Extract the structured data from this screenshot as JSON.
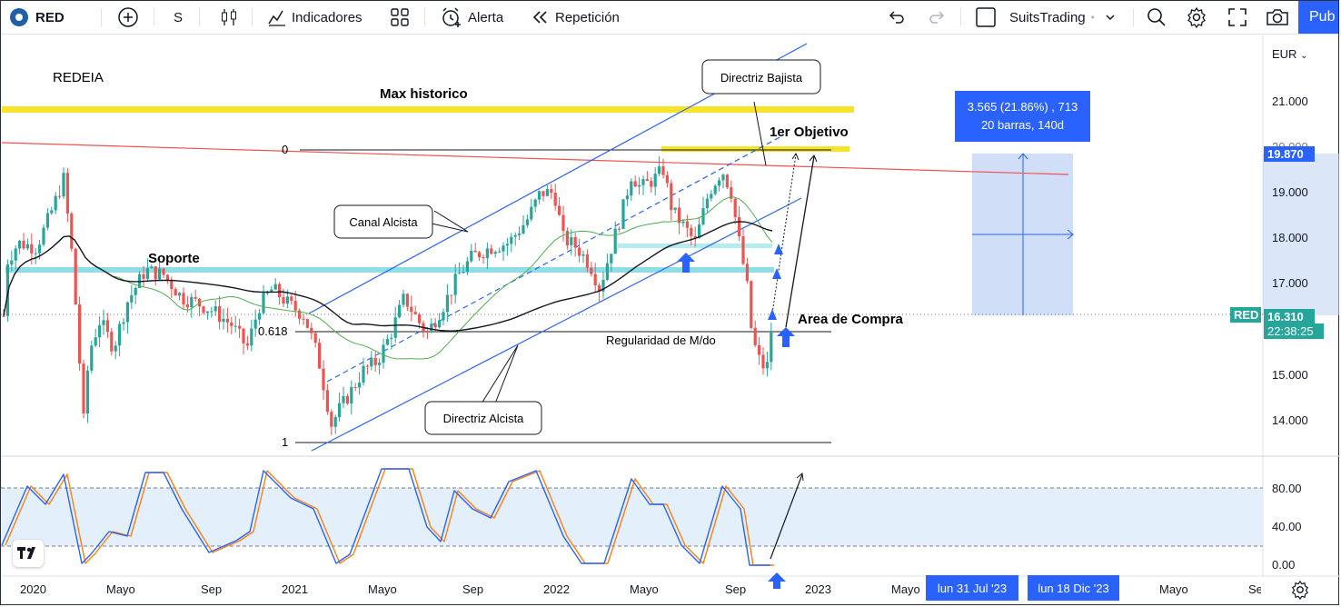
{
  "toolbar": {
    "symbol": "RED",
    "interval": "S",
    "indicators": "Indicadores",
    "alert": "Alerta",
    "replay": "Repetición",
    "layout_name": "SuitsTrading",
    "publish": "Pub"
  },
  "chart": {
    "ticker_title": "REDEIA",
    "currency": "EUR",
    "price_ticks": [
      "21.000",
      "20.000",
      "19.000",
      "18.000",
      "17.000",
      "16.000",
      "15.000",
      "14.000"
    ],
    "osc_ticks": [
      "80.00",
      "40.00",
      "0.00"
    ],
    "time_ticks": [
      "2020",
      "Mayo",
      "Sep",
      "2021",
      "Mayo",
      "Sep",
      "2022",
      "Mayo",
      "Sep",
      "2023",
      "Mayo",
      "Mayo",
      "Sep"
    ],
    "time_badges": [
      "lun 31 Jul '23",
      "lun 18 Dic '23"
    ],
    "target_price": "19.870",
    "last_price": "16.310",
    "countdown": "22:38:25",
    "symbol_tag": "RED",
    "measure_line1": "3.565 (21.86%) , 713",
    "measure_line2": "20 barras, 140d",
    "fib_0": "0",
    "fib_0618": "0.618",
    "fib_1": "1",
    "annotations": {
      "max_historico": "Max historico",
      "directriz_bajista": "Directriz Bajista",
      "primer_objetivo": "1er Objetivo",
      "canal_alcista": "Canal Alcista",
      "soporte": "Soporte",
      "area_compra": "Area de Compra",
      "regularidad": "Regularidad de M/do",
      "directriz_alcista": "Directriz Alcista"
    },
    "colors": {
      "up": "#26a69a",
      "down": "#ef5350",
      "accent": "#2962ff",
      "yellow": "#f7e32a",
      "cyan": "#8fdde6"
    }
  }
}
